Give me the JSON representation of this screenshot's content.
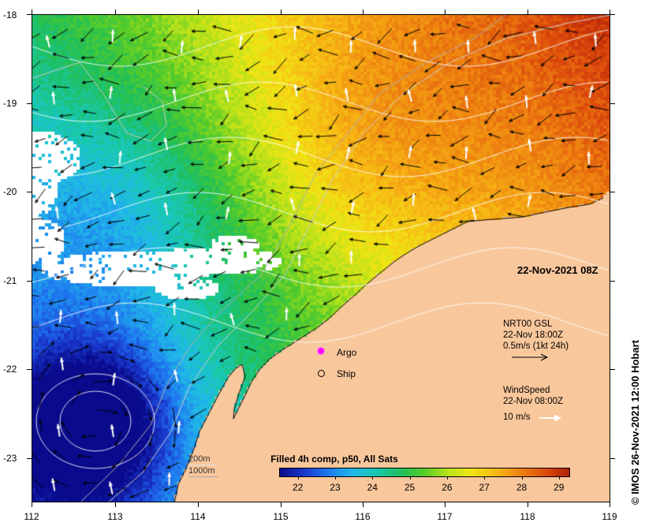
{
  "map": {
    "lon_ticks": [
      "112",
      "113",
      "114",
      "115",
      "116",
      "117",
      "118",
      "119"
    ],
    "lat_ticks": [
      "-18",
      "-19",
      "-20",
      "-21",
      "-22",
      "-23"
    ],
    "lon_range": [
      112,
      119
    ],
    "lat_range": [
      -23.5,
      -18
    ],
    "land_color": "#f9c79c",
    "cloud_color": "#ffffff"
  },
  "timestamp": "22-Nov-2021 08Z",
  "markers": {
    "argo_label": "Argo",
    "ship_label": "Ship",
    "argo_color": "#ff00ff"
  },
  "current_legend": {
    "line1": "NRT00 GSL",
    "line2": "22-Nov 18:00Z",
    "line3": "0.5m/s (1kt 24h)"
  },
  "wind_legend": {
    "line1": "WindSpeed",
    "line2": "22-Nov 08:00Z",
    "line3": "10 m/s"
  },
  "depth_legend": {
    "shallow": "200m",
    "deep": "1000m"
  },
  "colorbar": {
    "title": "Filled 4h comp, p50, All Sats",
    "labels": [
      "22",
      "23",
      "24",
      "25",
      "26",
      "27",
      "28",
      "29"
    ],
    "range": [
      21.5,
      29.3
    ]
  },
  "credit": "© IMOS 26-Nov-2021 12:00 Hobart"
}
